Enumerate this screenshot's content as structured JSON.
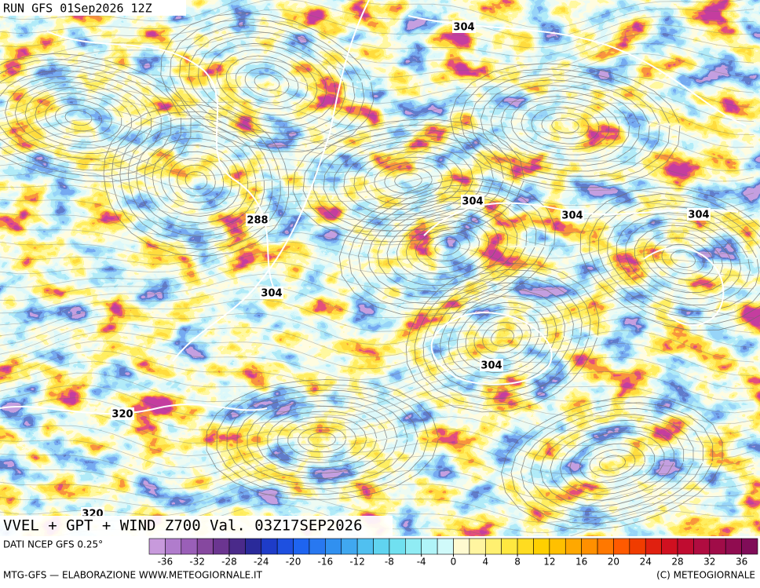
{
  "header": {
    "run": "RUN GFS 01Sep2026 12Z"
  },
  "map": {
    "contour_labels": [
      "304",
      "304",
      "304",
      "304",
      "288",
      "304",
      "304",
      "320",
      "320"
    ]
  },
  "title": "VVEL + GPT + WIND Z700 Val. 03Z17SEP2026",
  "footer": {
    "source": "DATI NCEP GFS 0.25°",
    "credit": "MTG-GFS — ELABORAZIONE WWW.METEOGIORNALE.IT",
    "copyright": "(C) METEOGIORNALE"
  },
  "colorbar": {
    "range": [
      -38,
      38
    ],
    "ticks": [
      -36,
      -32,
      -28,
      -24,
      -20,
      -16,
      -12,
      -8,
      -4,
      0,
      4,
      8,
      12,
      16,
      20,
      24,
      28,
      32,
      36
    ],
    "colors": [
      "#c89adc",
      "#b07ccc",
      "#9a5fb8",
      "#86489f",
      "#6b3590",
      "#4a2a8a",
      "#2a2a9a",
      "#1e3cc8",
      "#1e50e0",
      "#1e64f0",
      "#2878f0",
      "#3090f0",
      "#40a8f0",
      "#50c0f0",
      "#60d4f0",
      "#70e0f0",
      "#90ecf4",
      "#b0f4f8",
      "#d0fafa",
      "#fffad0",
      "#fff5a0",
      "#fff070",
      "#ffe840",
      "#ffdc20",
      "#ffd000",
      "#ffc000",
      "#ffa800",
      "#ff9000",
      "#ff7800",
      "#ff5a00",
      "#f03c00",
      "#e02010",
      "#d01020",
      "#c00c30",
      "#b00c40",
      "#a00c48",
      "#900c50",
      "#800c58"
    ]
  }
}
